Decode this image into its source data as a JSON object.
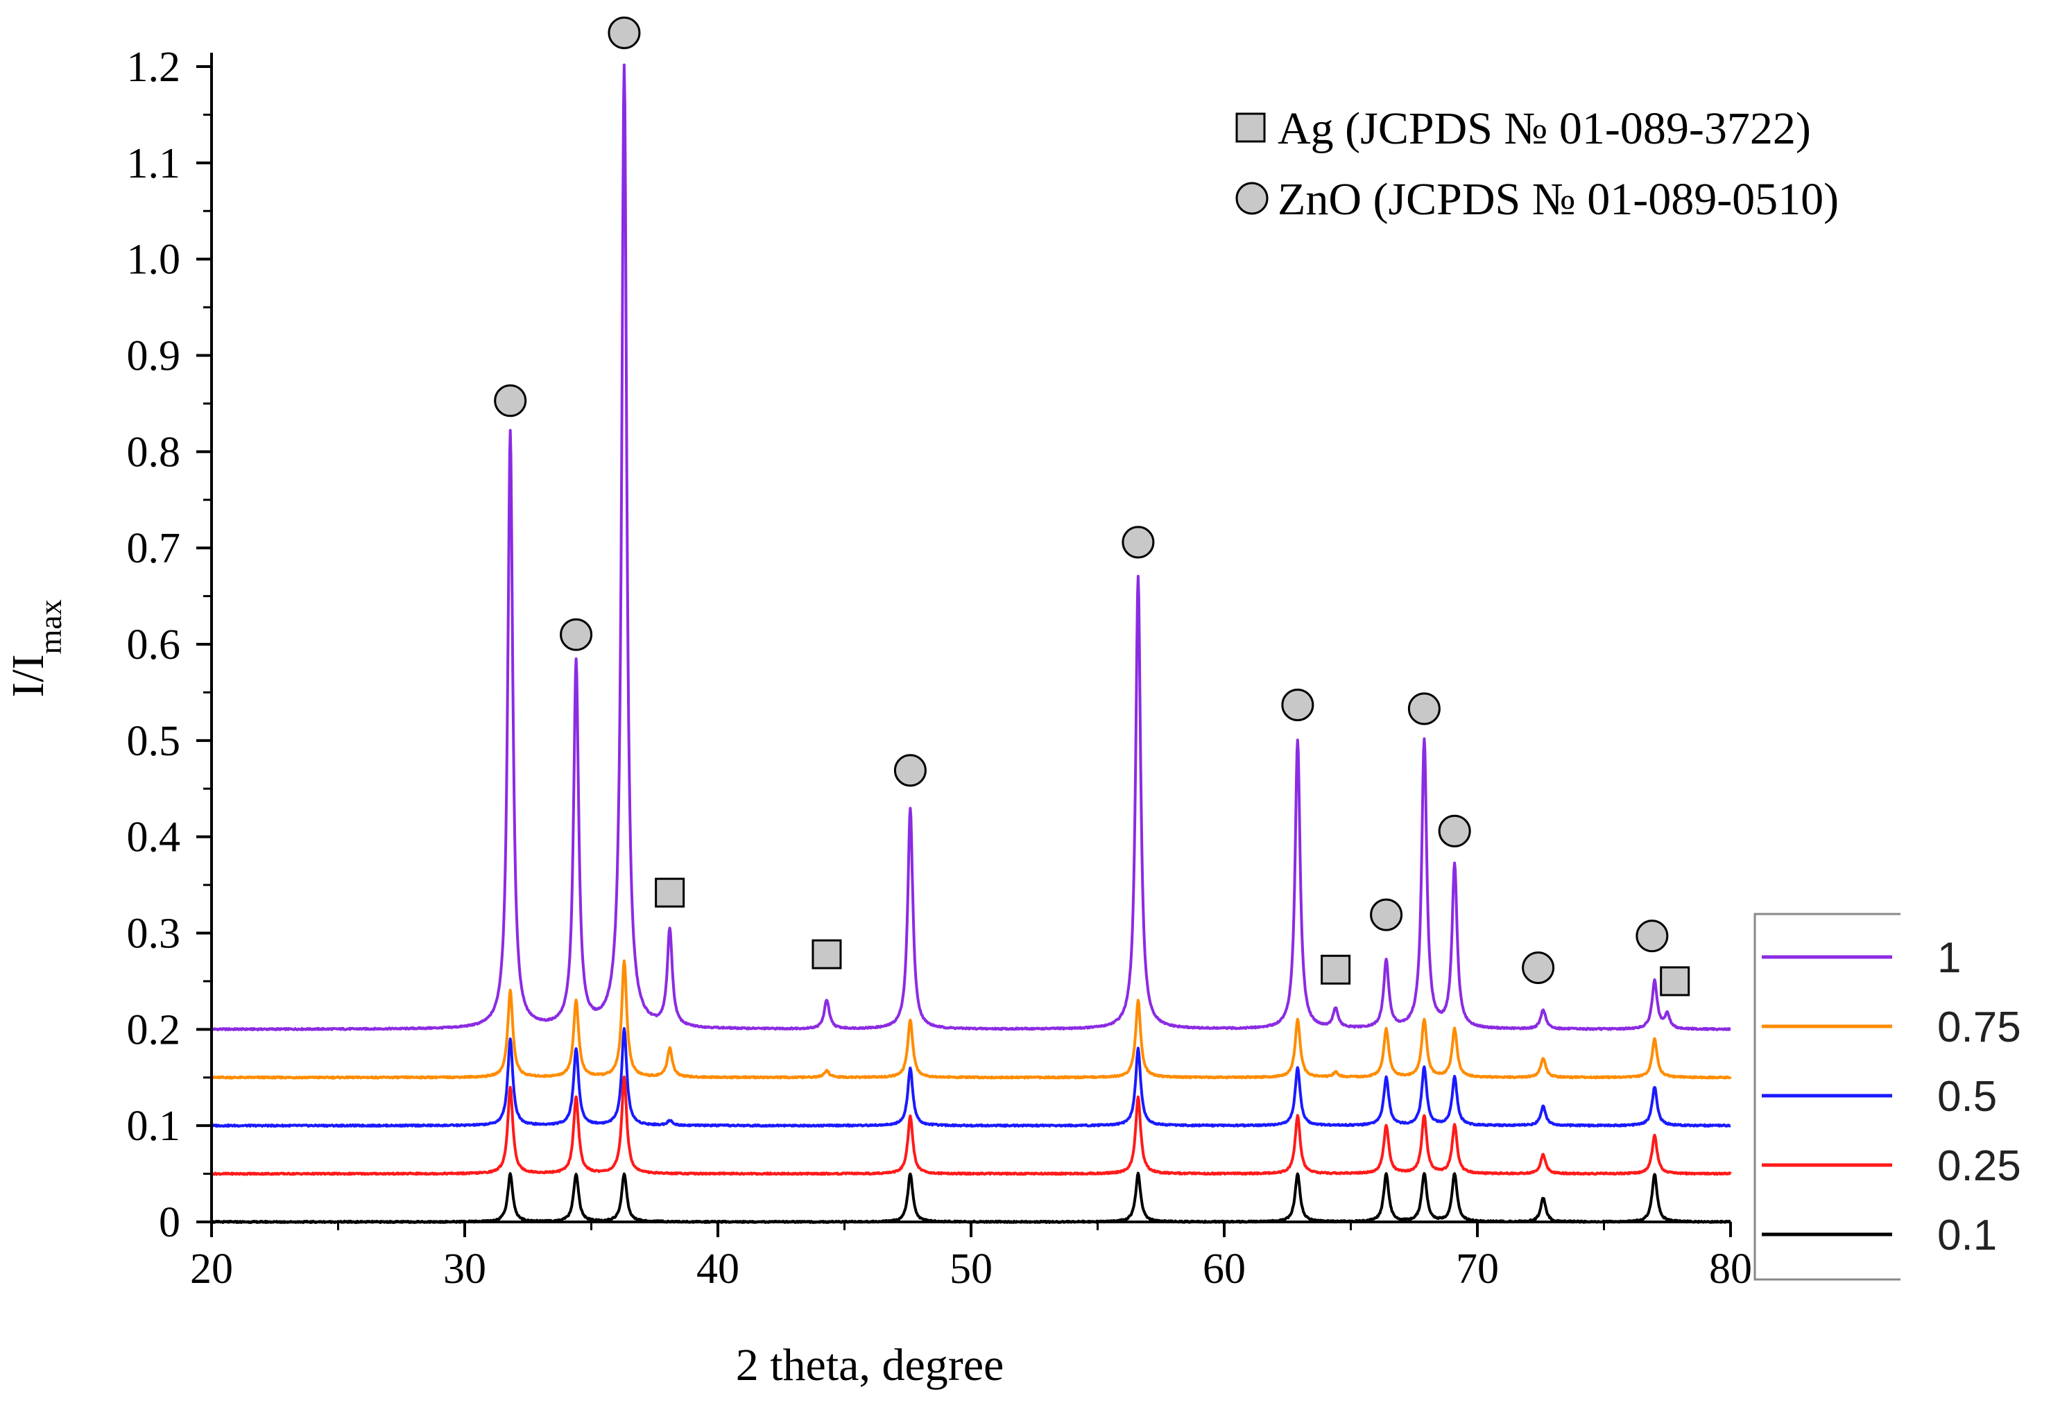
{
  "chart_data": {
    "type": "line",
    "xlabel": "2 theta, degree",
    "ylabel": "I/I",
    "ylabel_sub": "max",
    "xlim": [
      20,
      80
    ],
    "ylim": [
      0,
      1.2
    ],
    "xticks": [
      20,
      30,
      40,
      50,
      60,
      70,
      80
    ],
    "xtick_labels": [
      "20",
      "30",
      "40",
      "50",
      "60",
      "70",
      "80"
    ],
    "yticks": [
      0,
      0.1,
      0.2,
      0.3,
      0.4,
      0.5,
      0.6,
      0.7,
      0.8,
      0.9,
      1.0,
      1.1,
      1.2
    ],
    "ytick_labels": [
      "0",
      "0.1",
      "0.2",
      "0.3",
      "0.4",
      "0.5",
      "0.6",
      "0.7",
      "0.8",
      "0.9",
      "1.0",
      "1.1",
      "1.2"
    ],
    "series": [
      {
        "name": "1",
        "color": "#8B2BE2",
        "offset": 0.2,
        "peaks": [
          [
            31.8,
            0.62
          ],
          [
            34.4,
            0.38
          ],
          [
            36.3,
            1.0
          ],
          [
            38.1,
            0.1
          ],
          [
            44.3,
            0.03
          ],
          [
            47.6,
            0.23
          ],
          [
            56.6,
            0.47
          ],
          [
            62.9,
            0.3
          ],
          [
            64.4,
            0.02
          ],
          [
            66.4,
            0.07
          ],
          [
            67.9,
            0.3
          ],
          [
            69.1,
            0.17
          ],
          [
            72.6,
            0.02
          ],
          [
            77.0,
            0.05
          ],
          [
            77.5,
            0.015
          ]
        ]
      },
      {
        "name": "0.75",
        "color": "#FF8C00",
        "offset": 0.15,
        "peaks": [
          [
            31.8,
            0.09
          ],
          [
            34.4,
            0.08
          ],
          [
            36.3,
            0.12
          ],
          [
            38.1,
            0.03
          ],
          [
            44.3,
            0.007
          ],
          [
            47.6,
            0.06
          ],
          [
            56.6,
            0.08
          ],
          [
            62.9,
            0.06
          ],
          [
            64.4,
            0.005
          ],
          [
            66.4,
            0.05
          ],
          [
            67.9,
            0.06
          ],
          [
            69.1,
            0.05
          ],
          [
            72.6,
            0.02
          ],
          [
            77.0,
            0.04
          ]
        ]
      },
      {
        "name": "0.5",
        "color": "#1A1AFF",
        "offset": 0.1,
        "peaks": [
          [
            31.8,
            0.09
          ],
          [
            34.4,
            0.08
          ],
          [
            36.3,
            0.1
          ],
          [
            38.1,
            0.005
          ],
          [
            47.6,
            0.06
          ],
          [
            56.6,
            0.08
          ],
          [
            62.9,
            0.06
          ],
          [
            66.4,
            0.05
          ],
          [
            67.9,
            0.06
          ],
          [
            69.1,
            0.05
          ],
          [
            72.6,
            0.02
          ],
          [
            77.0,
            0.04
          ]
        ]
      },
      {
        "name": "0.25",
        "color": "#FF1A1A",
        "offset": 0.05,
        "peaks": [
          [
            31.8,
            0.09
          ],
          [
            34.4,
            0.08
          ],
          [
            36.3,
            0.1
          ],
          [
            47.6,
            0.06
          ],
          [
            56.6,
            0.08
          ],
          [
            62.9,
            0.06
          ],
          [
            66.4,
            0.05
          ],
          [
            67.9,
            0.06
          ],
          [
            69.1,
            0.05
          ],
          [
            72.6,
            0.02
          ],
          [
            77.0,
            0.04
          ]
        ]
      },
      {
        "name": "0.1",
        "color": "#000000",
        "offset": 0.0,
        "peaks": [
          [
            31.8,
            0.05
          ],
          [
            34.4,
            0.05
          ],
          [
            36.3,
            0.05
          ],
          [
            47.6,
            0.05
          ],
          [
            56.6,
            0.05
          ],
          [
            62.9,
            0.05
          ],
          [
            66.4,
            0.05
          ],
          [
            67.9,
            0.05
          ],
          [
            69.1,
            0.05
          ],
          [
            72.6,
            0.025
          ],
          [
            77.0,
            0.05
          ]
        ]
      }
    ],
    "markers": [
      {
        "phase": "ZnO",
        "x": 31.8,
        "y": 0.853
      },
      {
        "phase": "ZnO",
        "x": 34.4,
        "y": 0.61
      },
      {
        "phase": "ZnO",
        "x": 36.3,
        "y": 1.235
      },
      {
        "phase": "Ag",
        "x": 38.1,
        "y": 0.342
      },
      {
        "phase": "Ag",
        "x": 44.3,
        "y": 0.278
      },
      {
        "phase": "ZnO",
        "x": 47.6,
        "y": 0.469
      },
      {
        "phase": "ZnO",
        "x": 56.6,
        "y": 0.706
      },
      {
        "phase": "ZnO",
        "x": 62.9,
        "y": 0.537
      },
      {
        "phase": "Ag",
        "x": 64.4,
        "y": 0.262
      },
      {
        "phase": "ZnO",
        "x": 66.4,
        "y": 0.319
      },
      {
        "phase": "ZnO",
        "x": 67.9,
        "y": 0.533
      },
      {
        "phase": "ZnO",
        "x": 69.1,
        "y": 0.406
      },
      {
        "phase": "ZnO",
        "x": 72.4,
        "y": 0.264
      },
      {
        "phase": "ZnO",
        "x": 76.9,
        "y": 0.297
      },
      {
        "phase": "Ag",
        "x": 77.8,
        "y": 0.25
      }
    ],
    "phase_legend": [
      {
        "symbol": "square",
        "label": "Ag (JCPDS № 01-089-3722)"
      },
      {
        "symbol": "circle",
        "label": "ZnO (JCPDS № 01-089-0510)"
      }
    ],
    "legend_position": "bottom-right, outside plot area",
    "marker_color": "#C8C8C8"
  }
}
